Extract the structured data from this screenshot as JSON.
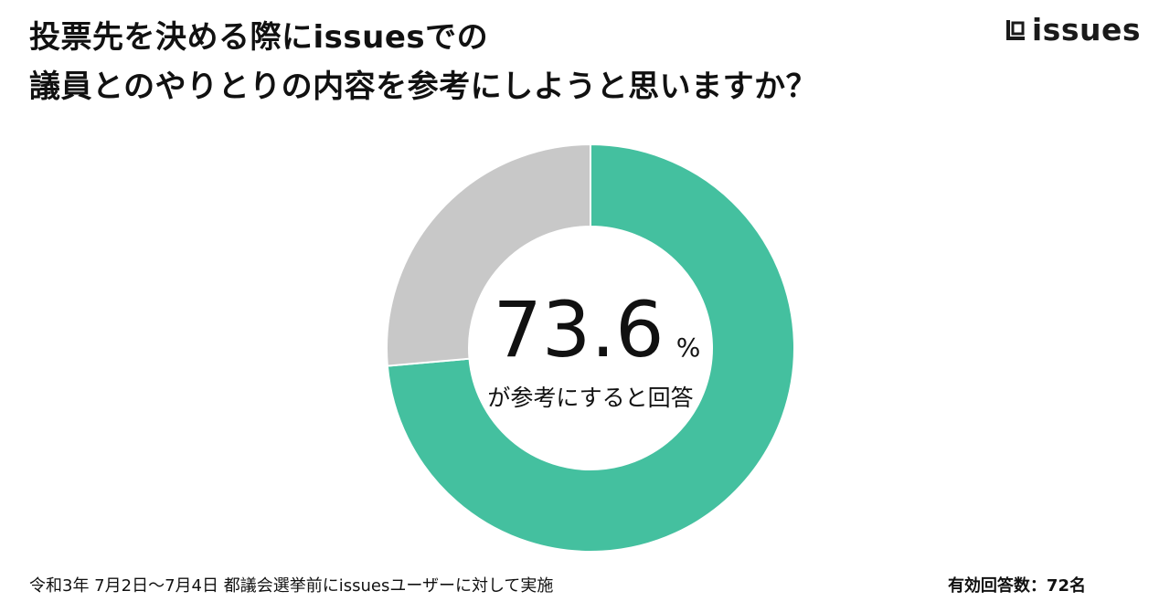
{
  "title": {
    "line1": "投票先を決める際にissuesでの",
    "line2": "議員とのやりとりの内容を参考にしようと思いますか？"
  },
  "brand": {
    "name": "issues",
    "icon": "issues-logo-icon"
  },
  "chart_data": {
    "type": "pie",
    "variant": "donut",
    "slices": [
      {
        "value": 73.6,
        "color": "#44c09f"
      },
      {
        "value": 26.4,
        "color": "#c8c8c8"
      }
    ],
    "center_value": "73.6",
    "center_unit": "%",
    "center_caption": "が参考にすると回答"
  },
  "footer": {
    "note": "令和3年 7月2日〜7月4日 都議会選挙前にissuesユーザーに対して実施",
    "count": "有効回答数：72名"
  }
}
